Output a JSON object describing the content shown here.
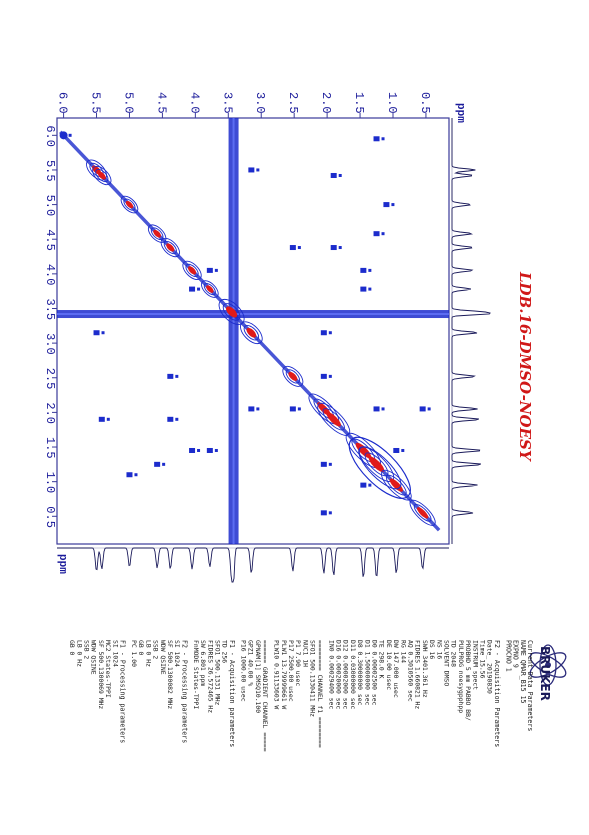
{
  "chart_data": {
    "type": "heatmap",
    "title": "LDB.16-DMSO-NOESY",
    "f2_axis": {
      "label": "ppm",
      "ticks": [
        "6.0",
        "5.5",
        "5.0",
        "4.5",
        "4.0",
        "3.5",
        "3.0",
        "2.5",
        "2.0",
        "1.5",
        "1.0",
        "0.5"
      ],
      "range": [
        6.1,
        0.15
      ]
    },
    "f1_axis": {
      "label": "ppm",
      "ticks": [
        "6.0",
        "5.5",
        "5.0",
        "4.5",
        "4.0",
        "3.5",
        "3.0",
        "2.5",
        "2.0",
        "1.5",
        "1.0",
        "0.5"
      ],
      "range": [
        6.25,
        0.1
      ]
    },
    "diagonal_peaks": [
      {
        "ppm": 5.5,
        "intensity": 0.7
      },
      {
        "ppm": 5.42,
        "intensity": 0.6
      },
      {
        "ppm": 5.0,
        "intensity": 0.5
      },
      {
        "ppm": 4.58,
        "intensity": 0.55
      },
      {
        "ppm": 4.38,
        "intensity": 0.6
      },
      {
        "ppm": 4.05,
        "intensity": 0.6
      },
      {
        "ppm": 3.78,
        "intensity": 0.5
      },
      {
        "ppm": 3.45,
        "intensity": 1.0
      },
      {
        "ppm": 3.15,
        "intensity": 0.8
      },
      {
        "ppm": 2.52,
        "intensity": 0.7
      },
      {
        "ppm": 2.05,
        "intensity": 0.8
      },
      {
        "ppm": 1.9,
        "intensity": 0.9
      },
      {
        "ppm": 1.45,
        "intensity": 1.0
      },
      {
        "ppm": 1.25,
        "intensity": 1.0
      },
      {
        "ppm": 0.95,
        "intensity": 0.8
      },
      {
        "ppm": 0.55,
        "intensity": 0.6
      }
    ],
    "solvent_ridge_ppm": 3.42,
    "cross_peaks": [
      {
        "f2": 1.25,
        "f1": 2.05
      },
      {
        "f2": 2.05,
        "f1": 1.25
      },
      {
        "f2": 0.95,
        "f1": 1.45
      },
      {
        "f2": 1.45,
        "f1": 0.95
      },
      {
        "f2": 1.9,
        "f1": 5.42
      },
      {
        "f2": 5.42,
        "f1": 1.9
      },
      {
        "f2": 2.05,
        "f1": 3.15
      },
      {
        "f2": 3.15,
        "f1": 2.05
      },
      {
        "f2": 4.38,
        "f1": 2.52
      },
      {
        "f2": 2.52,
        "f1": 4.38
      },
      {
        "f2": 3.78,
        "f1": 4.05
      },
      {
        "f2": 4.05,
        "f1": 3.78
      },
      {
        "f2": 1.1,
        "f1": 5.0
      },
      {
        "f2": 5.0,
        "f1": 1.1
      },
      {
        "f2": 1.25,
        "f1": 4.58
      },
      {
        "f2": 4.58,
        "f1": 1.25
      },
      {
        "f2": 1.9,
        "f1": 4.38
      },
      {
        "f2": 4.38,
        "f1": 1.9
      },
      {
        "f2": 1.45,
        "f1": 3.78
      },
      {
        "f2": 3.78,
        "f1": 1.45
      },
      {
        "f2": 2.05,
        "f1": 2.52
      },
      {
        "f2": 2.52,
        "f1": 2.05
      },
      {
        "f2": 5.5,
        "f1": 3.15
      },
      {
        "f2": 3.15,
        "f1": 5.5
      },
      {
        "f2": 0.55,
        "f1": 2.05
      },
      {
        "f2": 2.05,
        "f1": 0.55
      },
      {
        "f2": 1.25,
        "f1": 5.95
      },
      {
        "f2": 1.45,
        "f1": 4.05
      },
      {
        "f2": 4.05,
        "f1": 1.45
      },
      {
        "f2": 6.0,
        "f1": 6.0
      }
    ],
    "grid": false,
    "colors": {
      "positive_contour": "#1c2ccc",
      "peak_center": "#e01a1a",
      "axis_text": "#1a1a9a",
      "title": "#d01818"
    }
  },
  "logo": {
    "text": "BRUKER"
  },
  "parameters": {
    "header": [
      "Current Data Parameters",
      "NAME       QMAR_B15 15",
      "EXPNO                 9",
      "PROCNO                1"
    ],
    "acquisition_title": "F2 - Acquisition Parameters",
    "acquisition": [
      "Date_          20190830",
      "Time               15.56",
      "INSTRUM           spect",
      "PROBHD   5 mm PABBO BB/",
      "PULPROG    noesygpphpp",
      "TD                  2048",
      "SOLVENT             DMSO",
      "NS                    16",
      "DS                    16",
      "SWH          3401.361 Hz",
      "FIDRES       1.660821 Hz",
      "AQ         0.3010560 sec",
      "RG                   144",
      "DW               147.000 usec",
      "DE                 10.00 usec",
      "TE                 298.0 K",
      "D0            0.00002500 sec",
      "D1            1.50000000 sec",
      "D8            0.30000000 sec",
      "D11           0.03000000 sec",
      "D12           0.00002000 sec",
      "D16           0.00020000 sec",
      "IN0           0.00029400 sec"
    ],
    "channel_f1": [
      "======== CHANNEL f1 ========",
      "SFO1        500.1330411 MHz",
      "NUC1                    1H",
      "P1                    7.90 usec",
      "P17                2500.00 usec",
      "PLW1           13.79999661 W",
      "PLW10           0.91133603 W"
    ],
    "gradient_channel": [
      "====== GRADIENT CHANNEL =====",
      "GPNAM[1]         SMSQ10.100",
      "GPZ1                 40.00 %",
      "P16                1000.00 usec"
    ],
    "acquisition_f1_title": "F1 - Acquisition parameters",
    "acquisition_f1": [
      "TD                    256",
      "SFO1          500.1331 MHz",
      "FIDRES       26.572465 Hz",
      "SW                 6.801 ppm",
      "FnMODE          States-TPPI"
    ],
    "processing_f2_title": "F2 - Processing parameters",
    "processing_f2": [
      "SI                   1024",
      "SF          500.1300082 MHz",
      "WDW               QSINE",
      "SSB                     2",
      "LB                   0 Hz",
      "GB                      0",
      "PC                   1.00"
    ],
    "processing_f1_title": "F1 - Processing parameters",
    "processing_f1": [
      "SI                   1024",
      "MC2              States-TPPI",
      "SF          500.1300069 MHz",
      "WDW               QSINE",
      "SSB                     2",
      "LB                   0 Hz",
      "GB                      0"
    ]
  }
}
